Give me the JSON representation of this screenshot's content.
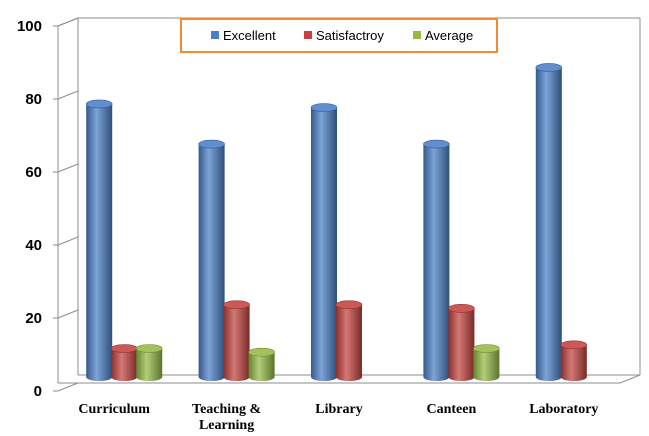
{
  "chart_data": {
    "type": "bar",
    "categories": [
      [
        "Curriculum"
      ],
      [
        "Teaching &",
        "Learning"
      ],
      [
        "Library"
      ],
      [
        "Canteen"
      ],
      [
        "Laboratory"
      ]
    ],
    "series": [
      {
        "name": "Excellent",
        "color": "#4a7fc8",
        "values": [
          77,
          66,
          76,
          66,
          87
        ]
      },
      {
        "name": "Satisfactroy",
        "color": "#c44340",
        "values": [
          10,
          22,
          22,
          21,
          11
        ]
      },
      {
        "name": "Average",
        "color": "#95bb45",
        "values": [
          10,
          9,
          null,
          10,
          null
        ]
      }
    ],
    "yticks": [
      "0",
      "20",
      "40",
      "60",
      "80",
      "100"
    ],
    "ylim": [
      0,
      100
    ],
    "legend_position": "top",
    "legend_border_color": "#f08c2e",
    "grid": false,
    "title": "",
    "xlabel": "",
    "ylabel": ""
  }
}
